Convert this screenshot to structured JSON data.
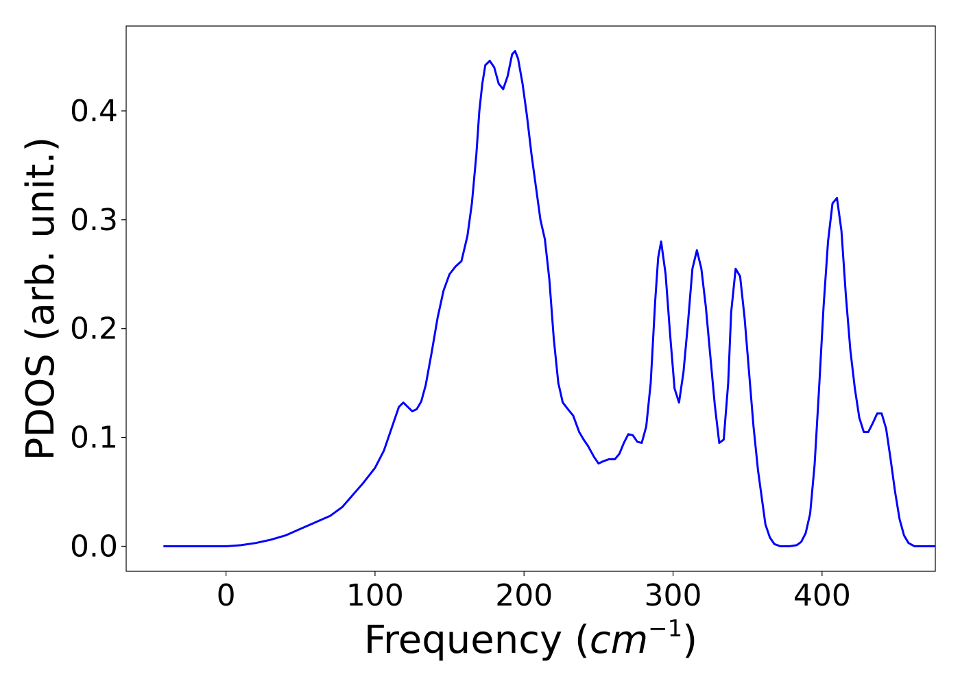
{
  "chart_data": {
    "type": "line",
    "title": "",
    "xlabel": "Frequency",
    "xlabel_unit_base": "cm",
    "xlabel_unit_exp": "−1",
    "ylabel": "PDOS (arb. unit.)",
    "xlim": [
      -67,
      476
    ],
    "ylim": [
      -0.023,
      0.478
    ],
    "xticks": [
      0,
      100,
      200,
      300,
      400
    ],
    "xtick_labels": [
      "0",
      "100",
      "200",
      "300",
      "400"
    ],
    "yticks": [
      0.0,
      0.1,
      0.2,
      0.3,
      0.4
    ],
    "ytick_labels": [
      "0.0",
      "0.1",
      "0.2",
      "0.3",
      "0.4"
    ],
    "grid": false,
    "colors": {
      "line": "#0000ff",
      "axes": "#000000",
      "background": "#ffffff"
    },
    "series": [
      {
        "points": [
          [
            -42,
            0.0
          ],
          [
            0,
            0.0
          ],
          [
            10,
            0.001
          ],
          [
            20,
            0.003
          ],
          [
            30,
            0.006
          ],
          [
            40,
            0.01
          ],
          [
            50,
            0.016
          ],
          [
            60,
            0.022
          ],
          [
            70,
            0.028
          ],
          [
            78,
            0.036
          ],
          [
            85,
            0.047
          ],
          [
            92,
            0.058
          ],
          [
            100,
            0.072
          ],
          [
            106,
            0.088
          ],
          [
            112,
            0.112
          ],
          [
            116,
            0.128
          ],
          [
            119,
            0.132
          ],
          [
            122,
            0.128
          ],
          [
            125,
            0.124
          ],
          [
            128,
            0.126
          ],
          [
            131,
            0.133
          ],
          [
            134,
            0.148
          ],
          [
            138,
            0.178
          ],
          [
            142,
            0.21
          ],
          [
            146,
            0.235
          ],
          [
            150,
            0.25
          ],
          [
            154,
            0.257
          ],
          [
            158,
            0.262
          ],
          [
            162,
            0.285
          ],
          [
            165,
            0.315
          ],
          [
            168,
            0.36
          ],
          [
            170,
            0.4
          ],
          [
            172,
            0.425
          ],
          [
            174,
            0.442
          ],
          [
            177,
            0.446
          ],
          [
            180,
            0.44
          ],
          [
            183,
            0.425
          ],
          [
            186,
            0.42
          ],
          [
            189,
            0.432
          ],
          [
            192,
            0.452
          ],
          [
            194,
            0.455
          ],
          [
            196,
            0.448
          ],
          [
            199,
            0.425
          ],
          [
            202,
            0.395
          ],
          [
            205,
            0.36
          ],
          [
            208,
            0.33
          ],
          [
            211,
            0.3
          ],
          [
            214,
            0.282
          ],
          [
            217,
            0.245
          ],
          [
            220,
            0.19
          ],
          [
            223,
            0.15
          ],
          [
            226,
            0.132
          ],
          [
            230,
            0.125
          ],
          [
            233,
            0.12
          ],
          [
            237,
            0.105
          ],
          [
            240,
            0.098
          ],
          [
            243,
            0.092
          ],
          [
            247,
            0.082
          ],
          [
            250,
            0.076
          ],
          [
            253,
            0.078
          ],
          [
            257,
            0.08
          ],
          [
            261,
            0.08
          ],
          [
            264,
            0.085
          ],
          [
            267,
            0.095
          ],
          [
            270,
            0.103
          ],
          [
            273,
            0.102
          ],
          [
            276,
            0.096
          ],
          [
            279,
            0.095
          ],
          [
            282,
            0.11
          ],
          [
            285,
            0.15
          ],
          [
            288,
            0.225
          ],
          [
            290,
            0.265
          ],
          [
            292,
            0.28
          ],
          [
            295,
            0.25
          ],
          [
            298,
            0.195
          ],
          [
            301,
            0.145
          ],
          [
            304,
            0.132
          ],
          [
            307,
            0.16
          ],
          [
            310,
            0.205
          ],
          [
            313,
            0.255
          ],
          [
            316,
            0.272
          ],
          [
            319,
            0.255
          ],
          [
            322,
            0.22
          ],
          [
            325,
            0.175
          ],
          [
            328,
            0.13
          ],
          [
            331,
            0.095
          ],
          [
            334,
            0.098
          ],
          [
            337,
            0.15
          ],
          [
            339,
            0.215
          ],
          [
            342,
            0.255
          ],
          [
            345,
            0.248
          ],
          [
            348,
            0.21
          ],
          [
            351,
            0.16
          ],
          [
            354,
            0.11
          ],
          [
            357,
            0.07
          ],
          [
            360,
            0.04
          ],
          [
            362,
            0.02
          ],
          [
            365,
            0.008
          ],
          [
            368,
            0.002
          ],
          [
            372,
            0.0
          ],
          [
            378,
            0.0
          ],
          [
            383,
            0.001
          ],
          [
            386,
            0.004
          ],
          [
            389,
            0.012
          ],
          [
            392,
            0.03
          ],
          [
            395,
            0.075
          ],
          [
            398,
            0.145
          ],
          [
            401,
            0.22
          ],
          [
            404,
            0.28
          ],
          [
            407,
            0.315
          ],
          [
            410,
            0.32
          ],
          [
            413,
            0.29
          ],
          [
            416,
            0.23
          ],
          [
            419,
            0.18
          ],
          [
            422,
            0.145
          ],
          [
            425,
            0.118
          ],
          [
            428,
            0.105
          ],
          [
            431,
            0.105
          ],
          [
            434,
            0.113
          ],
          [
            437,
            0.122
          ],
          [
            440,
            0.122
          ],
          [
            443,
            0.108
          ],
          [
            446,
            0.08
          ],
          [
            449,
            0.05
          ],
          [
            452,
            0.025
          ],
          [
            455,
            0.01
          ],
          [
            458,
            0.003
          ],
          [
            462,
            0.0
          ],
          [
            476,
            0.0
          ]
        ]
      }
    ]
  }
}
